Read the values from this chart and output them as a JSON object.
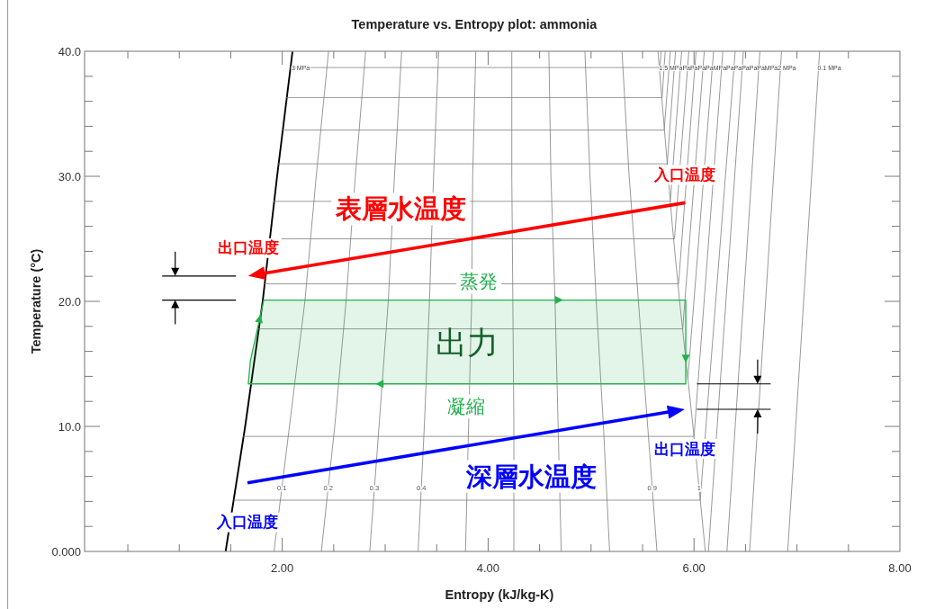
{
  "chart_data": {
    "type": "line",
    "title": "Temperature vs. Entropy plot: ammonia",
    "xlabel": "Entropy (kJ/kg-K)",
    "ylabel": "Temperature (°C)",
    "xlim": [
      0.08,
      8.0
    ],
    "ylim": [
      0,
      40
    ],
    "xticks": [
      {
        "value": 0.5,
        "label": null
      },
      {
        "value": 1.0,
        "label": null
      },
      {
        "value": 1.5,
        "label": null
      },
      {
        "value": 2,
        "label": "2.00"
      },
      {
        "value": 2.5,
        "label": null
      },
      {
        "value": 3.0,
        "label": null
      },
      {
        "value": 3.5,
        "label": null
      },
      {
        "value": 4,
        "label": "4.00"
      },
      {
        "value": 4.5,
        "label": null
      },
      {
        "value": 5.0,
        "label": null
      },
      {
        "value": 5.5,
        "label": null
      },
      {
        "value": 6,
        "label": "6.00"
      },
      {
        "value": 6.5,
        "label": null
      },
      {
        "value": 7.0,
        "label": null
      },
      {
        "value": 7.5,
        "label": null
      },
      {
        "value": 8,
        "label": "8.00"
      }
    ],
    "yticks": [
      {
        "value": 0,
        "label": "0.000"
      },
      {
        "value": 2,
        "label": null
      },
      {
        "value": 4,
        "label": null
      },
      {
        "value": 6,
        "label": null
      },
      {
        "value": 8,
        "label": null
      },
      {
        "value": 10,
        "label": "10.0"
      },
      {
        "value": 12,
        "label": null
      },
      {
        "value": 14,
        "label": null
      },
      {
        "value": 16,
        "label": null
      },
      {
        "value": 18,
        "label": null
      },
      {
        "value": 20,
        "label": "20.0"
      },
      {
        "value": 22,
        "label": null
      },
      {
        "value": 24,
        "label": null
      },
      {
        "value": 26,
        "label": null
      },
      {
        "value": 28,
        "label": null
      },
      {
        "value": 30,
        "label": "30.0"
      },
      {
        "value": 32,
        "label": null
      },
      {
        "value": 34,
        "label": null
      },
      {
        "value": 36,
        "label": null
      },
      {
        "value": 38,
        "label": null
      },
      {
        "value": 40,
        "label": "40.0"
      }
    ],
    "series": [
      {
        "color": "#000000",
        "x": [
          1.45,
          1.64,
          1.81,
          1.95,
          2.1
        ],
        "values": [
          0,
          10,
          20,
          30,
          40
        ]
      },
      {
        "name": "1",
        "color": "#7f7f7f",
        "x": [
          6.11,
          5.99,
          5.86,
          5.79,
          5.72,
          5.65
        ],
        "values": [
          0,
          10,
          20,
          26,
          33,
          40
        ]
      },
      {
        "name": "0.1",
        "color": "#7f7f7f",
        "x": [
          1.92,
          2.07,
          2.22,
          2.33,
          2.45
        ],
        "values": [
          0,
          10,
          20,
          30,
          40
        ]
      },
      {
        "name": "0.2",
        "color": "#7f7f7f",
        "x": [
          2.38,
          2.51,
          2.62,
          2.71,
          2.81
        ],
        "values": [
          0,
          10,
          20,
          30,
          40
        ]
      },
      {
        "name": "0.3",
        "color": "#7f7f7f",
        "x": [
          2.85,
          2.94,
          3.03,
          3.09,
          3.16
        ],
        "values": [
          0,
          10,
          20,
          30,
          40
        ]
      },
      {
        "name": "0.4",
        "color": "#7f7f7f",
        "x": [
          3.32,
          3.38,
          3.43,
          3.47,
          3.52
        ],
        "values": [
          0,
          10,
          20,
          30,
          40
        ]
      },
      {
        "color": "#7f7f7f",
        "x": [
          3.78,
          3.81,
          3.84,
          3.85,
          3.88
        ],
        "values": [
          0,
          10,
          20,
          30,
          40
        ]
      },
      {
        "color": "#7f7f7f",
        "x": [
          4.25,
          4.25,
          4.24,
          4.23,
          4.23
        ],
        "values": [
          0,
          10,
          20,
          30,
          40
        ]
      },
      {
        "color": "#7f7f7f",
        "x": [
          4.71,
          4.68,
          4.65,
          4.61,
          4.59
        ],
        "values": [
          0,
          10,
          20,
          30,
          40
        ]
      },
      {
        "color": "#7f7f7f",
        "x": [
          5.18,
          5.12,
          5.05,
          4.99,
          4.94
        ],
        "values": [
          0,
          10,
          20,
          30,
          40
        ]
      },
      {
        "name": "0.9",
        "color": "#7f7f7f",
        "x": [
          5.64,
          5.55,
          5.46,
          5.37,
          5.3
        ],
        "values": [
          0,
          10,
          20,
          30,
          40
        ]
      },
      {
        "color": "#7f7f7f",
        "x": [
          2.08,
          5.67,
          5.68
        ],
        "values": [
          38.7,
          38.7,
          40
        ]
      },
      {
        "color": "#7f7f7f",
        "x": [
          2.04,
          5.69,
          5.72
        ],
        "values": [
          36.3,
          36.3,
          40
        ]
      },
      {
        "color": "#7f7f7f",
        "x": [
          2.0,
          5.71,
          5.77
        ],
        "values": [
          33.7,
          33.7,
          40
        ]
      },
      {
        "color": "#7f7f7f",
        "x": [
          1.96,
          5.74,
          5.82
        ],
        "values": [
          31.0,
          31.0,
          40
        ]
      },
      {
        "color": "#7f7f7f",
        "x": [
          1.92,
          5.77,
          5.88
        ],
        "values": [
          28.0,
          28.0,
          40
        ]
      },
      {
        "color": "#7f7f7f",
        "x": [
          1.88,
          5.81,
          5.95
        ],
        "values": [
          25.0,
          25.0,
          40
        ]
      },
      {
        "color": "#7f7f7f",
        "x": [
          1.83,
          5.85,
          6.02
        ],
        "values": [
          21.4,
          21.4,
          40
        ]
      },
      {
        "color": "#7f7f7f",
        "x": [
          1.77,
          5.89,
          6.1
        ],
        "values": [
          17.8,
          17.8,
          40
        ]
      },
      {
        "color": "#7f7f7f",
        "x": [
          5.94,
          6.19
        ],
        "values": [
          13.8,
          40
        ]
      },
      {
        "color": "#7f7f7f",
        "x": [
          1.62,
          6.0,
          6.28
        ],
        "values": [
          9.2,
          9.2,
          40
        ]
      },
      {
        "color": "#7f7f7f",
        "x": [
          1.53,
          6.06,
          6.4
        ],
        "values": [
          4.1,
          4.1,
          40
        ]
      },
      {
        "color": "#7f7f7f",
        "x": [
          6.14,
          6.48
        ],
        "values": [
          0,
          40
        ]
      },
      {
        "color": "#7f7f7f",
        "x": [
          6.32,
          6.64
        ],
        "values": [
          0,
          40
        ]
      },
      {
        "color": "#7f7f7f",
        "x": [
          6.54,
          6.85
        ],
        "values": [
          0,
          40
        ]
      },
      {
        "color": "#7f7f7f",
        "x": [
          6.91,
          7.22
        ],
        "values": [
          0,
          40
        ]
      },
      {
        "type": "area",
        "color": "#22b14c",
        "x": [
          1.67,
          1.69,
          1.82,
          5.92,
          5.92
        ],
        "values": [
          13.4,
          15.2,
          20.1,
          20.1,
          13.4
        ]
      }
    ],
    "annotations": [
      {
        "text": "蒸発",
        "x": 3.91,
        "y": 20.1
      },
      {
        "text": "凝縮",
        "x": 3.79,
        "y": 13.4
      },
      {
        "text": "3 MPa",
        "x": 2.09,
        "y": 38.7
      },
      {
        "text": "1.5 MPaPaPaPaPaMPaPaPaPaPaPaMPa2 MPa",
        "x": 5.66,
        "y": 38.7
      },
      {
        "text": "0.1 MPa",
        "x": 7.2,
        "y": 38.7
      },
      "表層水温度",
      "入口温度",
      "出口温度",
      "深層水温度",
      "入口温度",
      "出口温度",
      "出力"
    ]
  }
}
